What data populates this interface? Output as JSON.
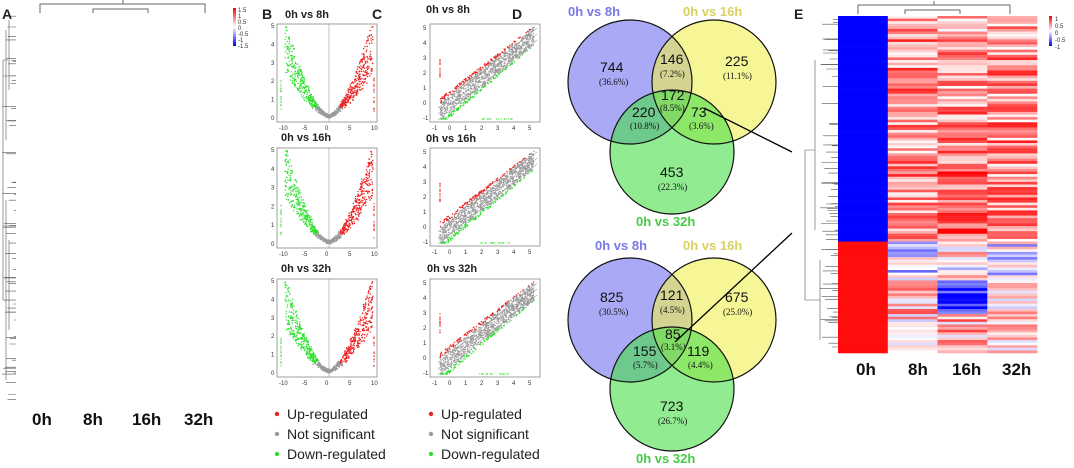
{
  "panel_labels": [
    "A",
    "B",
    "C",
    "D",
    "E"
  ],
  "heatmap_a": {
    "columns": [
      "0h",
      "8h",
      "16h",
      "32h"
    ],
    "scale_ticks": [
      "1.5",
      "1",
      "0.5",
      "0",
      "-0.5",
      "-1",
      "-1.5"
    ]
  },
  "volcano_b": {
    "titles": [
      "0h vs 8h",
      "0h vs 16h",
      "0h vs 32h"
    ],
    "x_ticks": [
      "-10",
      "-5",
      "0",
      "5",
      "10"
    ],
    "y_ticks": [
      "0",
      "1",
      "2",
      "3",
      "4",
      "5"
    ]
  },
  "scatter_c": {
    "titles": [
      "0h vs 8h",
      "0h vs 16h",
      "0h vs 32h"
    ],
    "x_ticks": [
      "-1",
      "0",
      "1",
      "2",
      "3",
      "4",
      "5"
    ],
    "y_ticks": [
      "-1",
      "0",
      "1",
      "2",
      "3",
      "4",
      "5"
    ]
  },
  "legend": {
    "items": [
      "Up-regulated",
      "Not significant",
      "Down-regulated"
    ],
    "colors": [
      "#ee1c1c",
      "#9a9a9a",
      "#2ee02e"
    ]
  },
  "venn_d": {
    "set_names": [
      "0h vs 8h",
      "0h vs 16h",
      "0h vs 32h"
    ],
    "set_colors": [
      "#7b7bf0",
      "#e6e05a",
      "#48d048"
    ],
    "top": {
      "a_only": "744",
      "a_only_pct": "(36.6%)",
      "ab": "146",
      "ab_pct": "(7.2%)",
      "b_only": "225",
      "b_only_pct": "(11.1%)",
      "abc": "172",
      "abc_pct": "(8.5%)",
      "ac": "220",
      "ac_pct": "(10.8%)",
      "bc": "73",
      "bc_pct": "(3.6%)",
      "c_only": "453",
      "c_only_pct": "(22.3%)"
    },
    "bottom": {
      "a_only": "825",
      "a_only_pct": "(30.5%)",
      "ab": "121",
      "ab_pct": "(4.5%)",
      "b_only": "675",
      "b_only_pct": "(25.0%)",
      "abc": "85",
      "abc_pct": "(3.1%)",
      "ac": "155",
      "ac_pct": "(5.7%)",
      "bc": "119",
      "bc_pct": "(4.4%)",
      "c_only": "723",
      "c_only_pct": "(26.7%)"
    }
  },
  "heatmap_e": {
    "columns": [
      "0h",
      "8h",
      "16h",
      "32h"
    ],
    "scale_ticks": [
      "1",
      "0.5",
      "0",
      "-0.5",
      "-1"
    ]
  },
  "colors": {
    "red": "#ff2020",
    "blue": "#1010ff",
    "white": "#ffffff"
  }
}
